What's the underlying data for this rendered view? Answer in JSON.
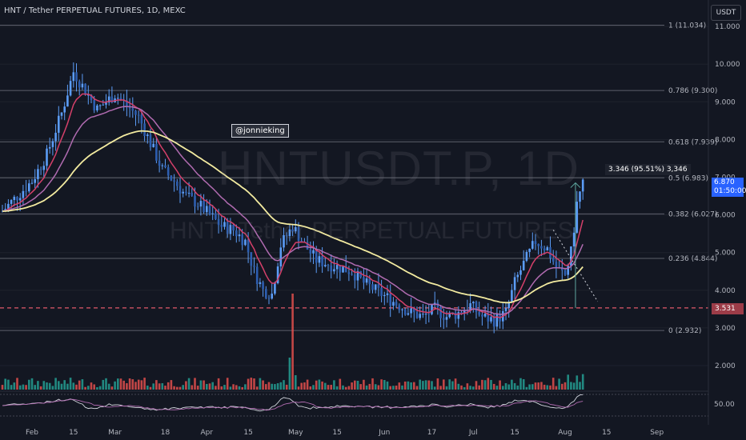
{
  "header": {
    "title": "HNT / Tether PERPETUAL FUTURES, 1D, MEXC",
    "currency_button": "USDT"
  },
  "watermark": {
    "symbol": "HNTUSDT.P, 1D",
    "description": "HNT / Tether PERPETUAL FUTURES"
  },
  "author_tag": "@jonnieking",
  "measure_label": "3.346 (95.51%) 3,346",
  "price_badge": {
    "price": "6.870",
    "countdown": "01:50:00"
  },
  "level_badge": "3.531",
  "oscillator_badge": "50.00",
  "colors": {
    "background": "#131722",
    "up": "#5b9cf6",
    "down": "#5b9cf6",
    "ema_fast": "#d5406a",
    "ema_mid": "#b06bb0",
    "ema_slow": "#f3eba0",
    "fib_line": "#434651",
    "level_line": "#e0586a",
    "price_badge": "#2962ff",
    "volume_up": "#26a69a",
    "volume_down": "#ef5350"
  },
  "chart_data": {
    "type": "candlestick",
    "ylim": [
      2.3,
      11.6
    ],
    "y_ticks": [
      "11.000",
      "10.000",
      "9.000",
      "8.000",
      "7.000",
      "6.000",
      "5.000",
      "4.000",
      "3.000",
      "2.000"
    ],
    "y_tick_values": [
      11,
      10,
      9,
      8,
      7,
      6,
      5,
      4,
      3,
      2
    ],
    "x_ticks": [
      "Feb",
      "15",
      "Mar",
      "18",
      "Apr",
      "15",
      "May",
      "15",
      "Jun",
      "17",
      "Jul",
      "15",
      "Aug",
      "15",
      "Sep"
    ],
    "x_tick_days": [
      0,
      14,
      28,
      45,
      59,
      73,
      89,
      103,
      119,
      135,
      149,
      163,
      180,
      194,
      211
    ],
    "fib_levels": [
      {
        "label": "1 (11.034)",
        "value": 11.034
      },
      {
        "label": "0.786 (9.300)",
        "value": 9.3
      },
      {
        "label": "0.618 (7.939)",
        "value": 7.939
      },
      {
        "label": "0.5 (6.983)",
        "value": 6.983
      },
      {
        "label": "0.382 (6.027)",
        "value": 6.027
      },
      {
        "label": "0.236 (4.844)",
        "value": 4.844
      },
      {
        "label": "0 (2.932)",
        "value": 2.932
      }
    ],
    "horizontal_level": 3.531,
    "last_price": 6.87,
    "price_path_days": [
      -10,
      0,
      5,
      10,
      14,
      18,
      22,
      28,
      32,
      36,
      40,
      44,
      48,
      52,
      56,
      60,
      64,
      68,
      72,
      75,
      78,
      81,
      84,
      88,
      92,
      96,
      100,
      104,
      108,
      112,
      116,
      120,
      124,
      128,
      132,
      136,
      140,
      144,
      148,
      152,
      156,
      160,
      163,
      166,
      170,
      174,
      177,
      180,
      182,
      184,
      186
    ],
    "price_path_values": [
      6.1,
      6.9,
      7.6,
      8.7,
      9.8,
      9.3,
      8.8,
      9.2,
      8.9,
      8.6,
      7.9,
      7.2,
      6.9,
      6.5,
      6.3,
      6.0,
      5.7,
      5.6,
      5.3,
      4.5,
      4.0,
      3.9,
      5.2,
      5.7,
      5.2,
      4.8,
      4.7,
      4.6,
      4.5,
      4.2,
      4.0,
      3.8,
      3.6,
      3.4,
      3.3,
      3.5,
      3.3,
      3.4,
      3.6,
      3.3,
      3.2,
      3.4,
      4.2,
      4.7,
      5.3,
      5.1,
      4.6,
      4.4,
      5.0,
      6.3,
      6.87
    ],
    "oscillator_ref": 50
  }
}
